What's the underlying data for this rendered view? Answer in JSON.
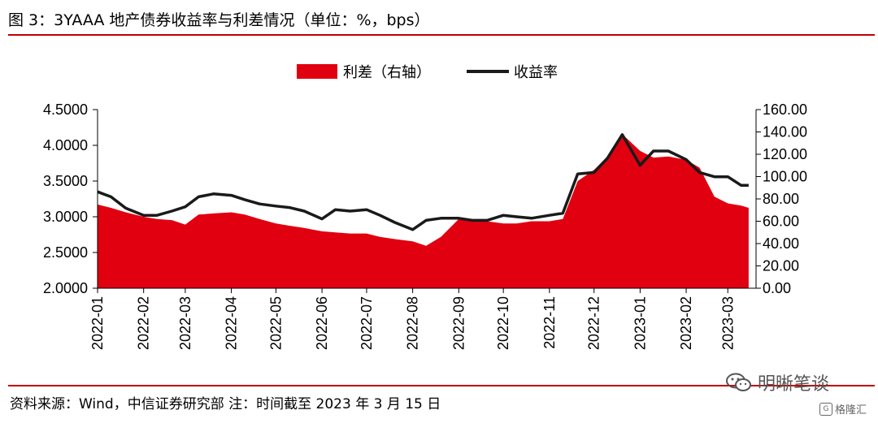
{
  "figure": {
    "title": "图 3：3YAAA 地产债券收益率与利差情况（单位：%，bps）",
    "source": "资料来源：Wind，中信证券研究部  注：时间截至 2023 年 3 月 15 日"
  },
  "watermark": {
    "text": "明晰笔谈",
    "icon": "wechat-icon",
    "secondary_text": "格隆汇",
    "secondary_icon": "gelonghui-icon"
  },
  "colors": {
    "spread": "#e0000f",
    "yield": "#1a1a1a",
    "rule": "#c00000"
  },
  "chart_data": {
    "type": "area+line",
    "title": "",
    "legend_position": "top-center",
    "grid": false,
    "x_tick_labels": [
      "2022-01",
      "2022-02",
      "2022-03",
      "2022-04",
      "2022-05",
      "2022-06",
      "2022-07",
      "2022-08",
      "2022-09",
      "2022-10",
      "2022-11",
      "2022-12",
      "2023-01",
      "2023-02",
      "2023-03"
    ],
    "y_left": {
      "ylim": [
        2.0,
        4.5
      ],
      "ticks": [
        "2.0000",
        "2.5000",
        "3.0000",
        "3.5000",
        "4.0000",
        "4.5000"
      ]
    },
    "y_right": {
      "ylim": [
        0,
        160
      ],
      "ticks": [
        "0.00",
        "20.00",
        "40.00",
        "60.00",
        "80.00",
        "100.00",
        "120.00",
        "140.00",
        "160.00"
      ]
    },
    "series": [
      {
        "name": "利差（右轴）",
        "type": "area",
        "axis": "right",
        "x": [
          "2022-01-01",
          "2022-01-10",
          "2022-01-20",
          "2022-02-01",
          "2022-02-10",
          "2022-02-20",
          "2022-03-01",
          "2022-03-10",
          "2022-03-20",
          "2022-04-01",
          "2022-04-10",
          "2022-04-20",
          "2022-05-01",
          "2022-05-10",
          "2022-05-20",
          "2022-06-01",
          "2022-06-10",
          "2022-06-20",
          "2022-07-01",
          "2022-07-10",
          "2022-07-20",
          "2022-08-01",
          "2022-08-10",
          "2022-08-20",
          "2022-09-01",
          "2022-09-10",
          "2022-09-20",
          "2022-10-01",
          "2022-10-10",
          "2022-10-20",
          "2022-11-01",
          "2022-11-10",
          "2022-11-20",
          "2022-12-01",
          "2022-12-10",
          "2022-12-20",
          "2023-01-01",
          "2023-01-10",
          "2023-01-20",
          "2023-02-01",
          "2023-02-10",
          "2023-02-20",
          "2023-03-01",
          "2023-03-10",
          "2023-03-15"
        ],
        "values": [
          75,
          72,
          68,
          64,
          62,
          61,
          57,
          66,
          67,
          68,
          66,
          62,
          58,
          56,
          54,
          51,
          50,
          49,
          49,
          46,
          44,
          42,
          38,
          46,
          62,
          60,
          60,
          58,
          58,
          60,
          60,
          62,
          96,
          106,
          118,
          138,
          123,
          117,
          118,
          115,
          108,
          82,
          76,
          74,
          72
        ]
      },
      {
        "name": "收益率",
        "type": "line",
        "axis": "left",
        "x": [
          "2022-01-01",
          "2022-01-10",
          "2022-01-20",
          "2022-02-01",
          "2022-02-10",
          "2022-02-20",
          "2022-03-01",
          "2022-03-10",
          "2022-03-20",
          "2022-04-01",
          "2022-04-10",
          "2022-04-20",
          "2022-05-01",
          "2022-05-10",
          "2022-05-20",
          "2022-06-01",
          "2022-06-10",
          "2022-06-20",
          "2022-07-01",
          "2022-07-10",
          "2022-07-20",
          "2022-08-01",
          "2022-08-10",
          "2022-08-20",
          "2022-09-01",
          "2022-09-10",
          "2022-09-20",
          "2022-10-01",
          "2022-10-10",
          "2022-10-20",
          "2022-11-01",
          "2022-11-10",
          "2022-11-20",
          "2022-12-01",
          "2022-12-10",
          "2022-12-20",
          "2023-01-01",
          "2023-01-10",
          "2023-01-20",
          "2023-02-01",
          "2023-02-10",
          "2023-02-20",
          "2023-03-01",
          "2023-03-10",
          "2023-03-15"
        ],
        "values": [
          3.35,
          3.28,
          3.12,
          3.02,
          3.02,
          3.08,
          3.14,
          3.28,
          3.32,
          3.3,
          3.24,
          3.18,
          3.15,
          3.13,
          3.08,
          2.97,
          3.1,
          3.08,
          3.1,
          3.02,
          2.92,
          2.82,
          2.95,
          2.98,
          2.98,
          2.95,
          2.95,
          3.02,
          3.0,
          2.98,
          3.02,
          3.05,
          3.6,
          3.62,
          3.82,
          4.15,
          3.72,
          3.92,
          3.92,
          3.8,
          3.62,
          3.56,
          3.56,
          3.44,
          3.44
        ]
      }
    ]
  }
}
